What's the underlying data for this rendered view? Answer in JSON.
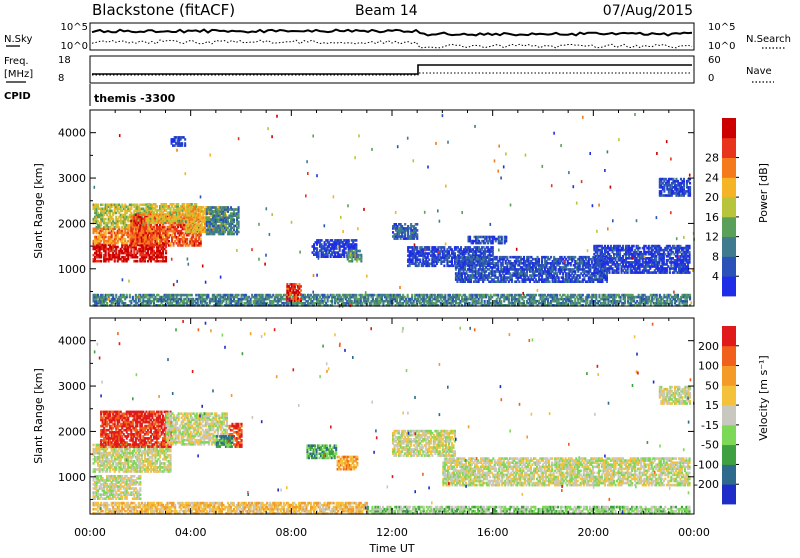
{
  "header": {
    "site": "Blackstone (fitACF)",
    "beam": "Beam 14",
    "date": "07/Aug/2015"
  },
  "summary_panels": {
    "nsky_label": "N.Sky",
    "nsky_ticks": [
      "10^5",
      "10^0"
    ],
    "nsearch_label": "N.Search",
    "freq_label": "Freq.",
    "freq_unit": "[MHz]",
    "freq_ticks": [
      "18",
      "8"
    ],
    "nave_label": "Nave",
    "nave_ticks": [
      "60",
      "0"
    ],
    "cpid_label": "CPID",
    "cpid_value": "themis -3300"
  },
  "time_axis": {
    "label": "Time UT",
    "ticks": [
      "00:00",
      "04:00",
      "08:00",
      "12:00",
      "16:00",
      "20:00",
      "00:00"
    ]
  },
  "chart_data": [
    {
      "type": "heatmap",
      "panel": "power",
      "ylabel": "Slant Range [km]",
      "yticks": [
        "1000",
        "2000",
        "3000",
        "4000"
      ],
      "ylim": [
        180,
        4500
      ],
      "xlim_hours": [
        0,
        24
      ],
      "colorbar": {
        "label": "Power [dB]",
        "ticks": [
          "4",
          "8",
          "12",
          "16",
          "20",
          "24",
          "28"
        ],
        "colors": [
          "#1f2de6",
          "#2b52b8",
          "#3f7a8e",
          "#5aa05a",
          "#b8c43c",
          "#f4b425",
          "#f47a1c",
          "#e8341c",
          "#cc0000"
        ]
      },
      "blobs": [
        {
          "t0": 0.1,
          "t1": 3.0,
          "r0": 1150,
          "r1": 1550,
          "level": 0.92
        },
        {
          "t0": 0.1,
          "t1": 2.8,
          "r0": 1550,
          "r1": 1900,
          "level": 0.7
        },
        {
          "t0": 0.1,
          "t1": 2.5,
          "r0": 1900,
          "r1": 2400,
          "level": 0.5
        },
        {
          "t0": 1.6,
          "t1": 4.4,
          "r0": 1500,
          "r1": 2200,
          "level": 0.8
        },
        {
          "t0": 2.2,
          "t1": 4.2,
          "r0": 2000,
          "r1": 2450,
          "level": 0.55
        },
        {
          "t0": 3.8,
          "t1": 5.4,
          "r0": 1800,
          "r1": 2350,
          "level": 0.6
        },
        {
          "t0": 4.6,
          "t1": 5.9,
          "r0": 1750,
          "r1": 2350,
          "level": 0.3
        },
        {
          "t0": 8.8,
          "t1": 10.6,
          "r0": 1250,
          "r1": 1650,
          "level": 0.08
        },
        {
          "t0": 10.2,
          "t1": 10.8,
          "r0": 1150,
          "r1": 1400,
          "level": 0.35
        },
        {
          "t0": 12.0,
          "t1": 13.0,
          "r0": 1650,
          "r1": 2000,
          "level": 0.2
        },
        {
          "t0": 12.6,
          "t1": 16.0,
          "r0": 1050,
          "r1": 1500,
          "level": 0.12
        },
        {
          "t0": 14.5,
          "t1": 20.5,
          "r0": 700,
          "r1": 1250,
          "level": 0.15
        },
        {
          "t0": 15.0,
          "t1": 16.5,
          "r0": 1550,
          "r1": 1700,
          "level": 0.15
        },
        {
          "t0": 20.0,
          "t1": 23.8,
          "r0": 900,
          "r1": 1500,
          "level": 0.1
        },
        {
          "t0": 22.6,
          "t1": 23.8,
          "r0": 2600,
          "r1": 3000,
          "level": 0.12
        },
        {
          "t0": 0.1,
          "t1": 23.8,
          "r0": 180,
          "r1": 420,
          "level": 0.3
        },
        {
          "t0": 7.8,
          "t1": 8.4,
          "r0": 280,
          "r1": 650,
          "level": 0.85
        },
        {
          "t0": 3.2,
          "t1": 3.8,
          "r0": 3700,
          "r1": 3900,
          "level": 0.1
        }
      ]
    },
    {
      "type": "heatmap",
      "panel": "velocity",
      "ylabel": "Slant Range [km]",
      "yticks": [
        "1000",
        "2000",
        "3000",
        "4000"
      ],
      "ylim": [
        180,
        4500
      ],
      "xlim_hours": [
        0,
        24
      ],
      "colorbar": {
        "label": "Velocity [m s⁻¹]",
        "ticks": [
          "200",
          "100",
          "50",
          "15",
          "-15",
          "-50",
          "-100",
          "-200"
        ],
        "colors": [
          "#1f2dc8",
          "#2e6a8c",
          "#3ea040",
          "#7ed857",
          "#c8c8c0",
          "#f4c23a",
          "#f49a28",
          "#f0601c",
          "#e01a1a"
        ]
      },
      "blobs": [
        {
          "t0": 0.1,
          "t1": 3.2,
          "r0": 1100,
          "r1": 1700,
          "level": 0.5
        },
        {
          "t0": 0.4,
          "t1": 3.2,
          "r0": 1650,
          "r1": 2450,
          "level": 0.92
        },
        {
          "t0": 3.0,
          "t1": 5.4,
          "r0": 1700,
          "r1": 2400,
          "level": 0.5
        },
        {
          "t0": 5.5,
          "t1": 6.0,
          "r0": 1650,
          "r1": 2150,
          "level": 0.88
        },
        {
          "t0": 5.0,
          "t1": 5.6,
          "r0": 1650,
          "r1": 1900,
          "level": 0.28
        },
        {
          "t0": 8.6,
          "t1": 9.8,
          "r0": 1400,
          "r1": 1700,
          "level": 0.3
        },
        {
          "t0": 9.8,
          "t1": 10.6,
          "r0": 1150,
          "r1": 1450,
          "level": 0.72
        },
        {
          "t0": 12.0,
          "t1": 14.5,
          "r0": 1450,
          "r1": 2000,
          "level": 0.5
        },
        {
          "t0": 14.0,
          "t1": 23.8,
          "r0": 800,
          "r1": 1400,
          "level": 0.5
        },
        {
          "t0": 0.1,
          "t1": 11.0,
          "r0": 180,
          "r1": 420,
          "level": 0.62
        },
        {
          "t0": 11.0,
          "t1": 23.8,
          "r0": 180,
          "r1": 350,
          "level": 0.4
        },
        {
          "t0": 0.1,
          "t1": 2.0,
          "r0": 500,
          "r1": 1000,
          "level": 0.5
        },
        {
          "t0": 22.6,
          "t1": 23.8,
          "r0": 2600,
          "r1": 3000,
          "level": 0.5
        }
      ]
    }
  ]
}
